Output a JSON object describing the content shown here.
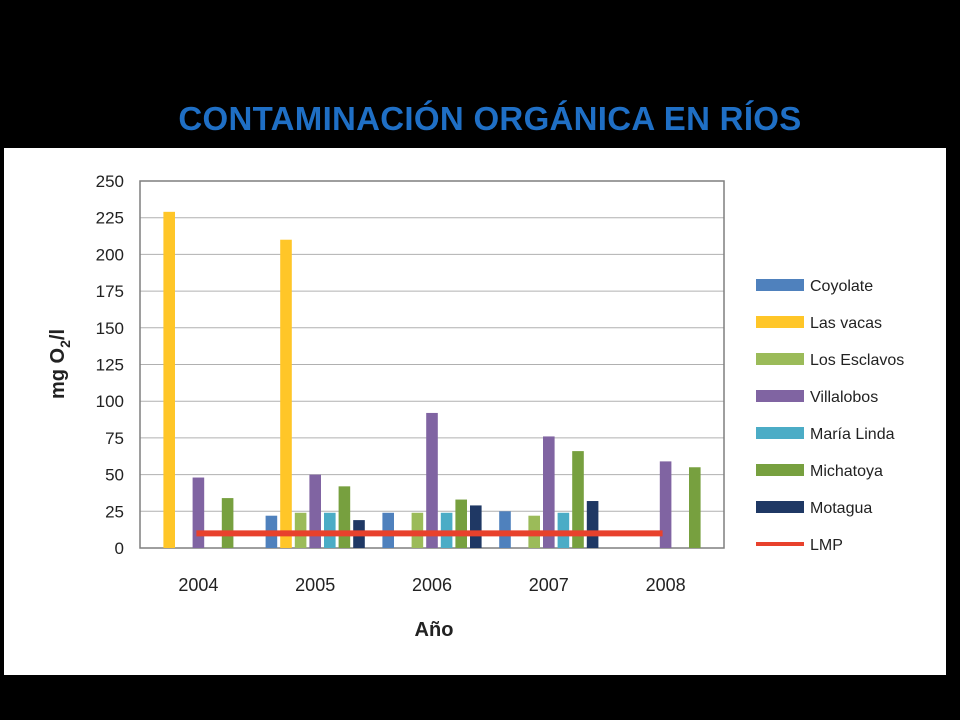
{
  "slide": {
    "title": "CONTAMINACIÓN ORGÁNICA EN RÍOS"
  },
  "chart_data": {
    "type": "bar",
    "categories": [
      "2004",
      "2005",
      "2006",
      "2007",
      "2008"
    ],
    "xlabel": "Año",
    "ylabel_parts": [
      "mg O",
      "2",
      "/l"
    ],
    "ylim": [
      0,
      250
    ],
    "yticks": [
      0,
      25,
      50,
      75,
      100,
      125,
      150,
      175,
      200,
      225,
      250
    ],
    "grid": true,
    "legend_position": "right",
    "series": [
      {
        "name": "Coyolate",
        "color": "#4f81bd",
        "values": [
          0,
          22,
          24,
          25,
          0
        ]
      },
      {
        "name": "Las vacas",
        "color": "#ffc628",
        "values": [
          229,
          210,
          0,
          0,
          0
        ]
      },
      {
        "name": "Los Esclavos",
        "color": "#9bbb59",
        "values": [
          0,
          24,
          24,
          22,
          0
        ]
      },
      {
        "name": "Villalobos",
        "color": "#8064a2",
        "values": [
          48,
          50,
          92,
          76,
          59
        ]
      },
      {
        "name": "María Linda",
        "color": "#4bacc6",
        "values": [
          0,
          24,
          24,
          24,
          0
        ]
      },
      {
        "name": "Michatoya",
        "color": "#77a03f",
        "values": [
          34,
          42,
          33,
          66,
          55
        ]
      },
      {
        "name": "Motagua",
        "color": "#1f3864",
        "values": [
          0,
          19,
          29,
          32,
          0
        ]
      }
    ],
    "reference_line": {
      "name": "LMP",
      "color": "#e8412c",
      "value": 10,
      "from": "2004",
      "to": "2008"
    }
  }
}
